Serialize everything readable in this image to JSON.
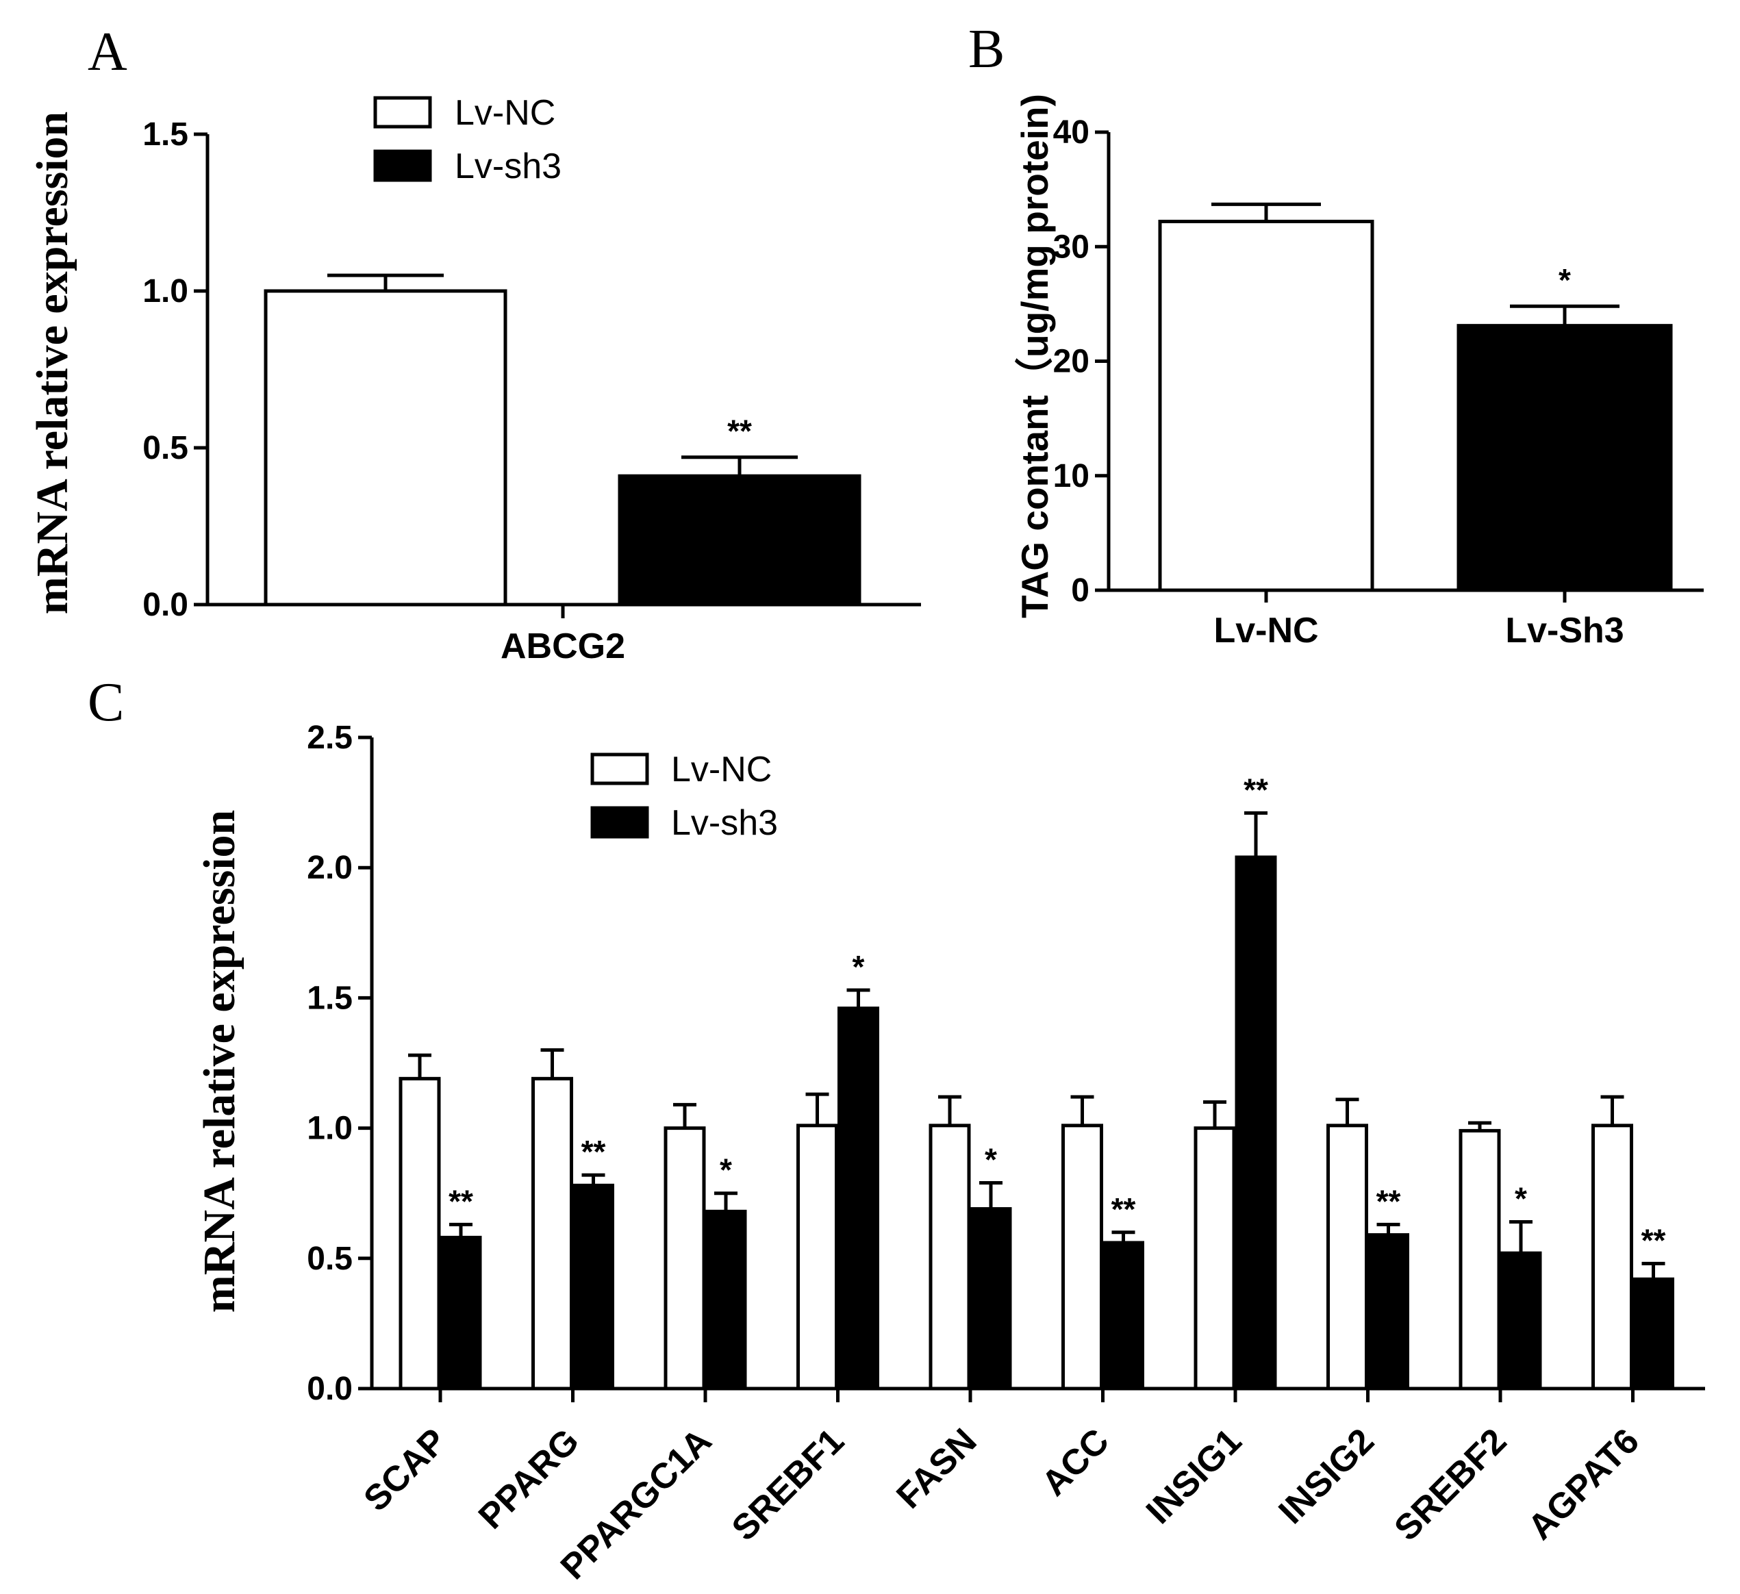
{
  "chart_data": [
    {
      "panel": "A",
      "type": "bar",
      "categories": [
        "ABCG2"
      ],
      "series": [
        {
          "name": "Lv-NC",
          "fill": "#ffffff",
          "values": [
            1.0
          ],
          "errors": [
            0.05
          ],
          "sig": [
            ""
          ]
        },
        {
          "name": "Lv-sh3",
          "fill": "#000000",
          "values": [
            0.41
          ],
          "errors": [
            0.06
          ],
          "sig": [
            "**"
          ]
        }
      ],
      "ylabel": "mRNA relative expression",
      "ylim": [
        0,
        1.5
      ],
      "yticks": [
        "0.0",
        "0.5",
        "1.0",
        "1.5"
      ],
      "ytick_values": [
        0,
        0.5,
        1.0,
        1.5
      ],
      "legend": [
        "Lv-NC",
        "Lv-sh3"
      ]
    },
    {
      "panel": "B",
      "type": "bar",
      "categories": [
        "Lv-NC",
        "Lv-Sh3"
      ],
      "values": [
        32.2,
        23.1
      ],
      "errors": [
        1.5,
        1.7
      ],
      "fills": [
        "#ffffff",
        "#000000"
      ],
      "sig": [
        "",
        "*"
      ],
      "ylabel": "TAG contant（ug/mg protein)",
      "ylim": [
        0,
        40
      ],
      "yticks": [
        "0",
        "10",
        "20",
        "30",
        "40"
      ],
      "ytick_values": [
        0,
        10,
        20,
        30,
        40
      ]
    },
    {
      "panel": "C",
      "type": "bar",
      "categories": [
        "SCAP",
        "PPARG",
        "PPARGC1A",
        "SREBF1",
        "FASN",
        "ACC",
        "INSIG1",
        "INSIG2",
        "SREBF2",
        "AGPAT6"
      ],
      "series": [
        {
          "name": "Lv-NC",
          "fill": "#ffffff",
          "values": [
            1.19,
            1.19,
            1.0,
            1.01,
            1.01,
            1.01,
            1.0,
            1.01,
            0.99,
            1.01
          ],
          "errors": [
            0.09,
            0.11,
            0.09,
            0.12,
            0.11,
            0.11,
            0.1,
            0.1,
            0.03,
            0.11
          ],
          "sig": [
            "",
            "",
            "",
            "",
            "",
            "",
            "",
            "",
            "",
            ""
          ]
        },
        {
          "name": "Lv-sh3",
          "fill": "#000000",
          "values": [
            0.58,
            0.78,
            0.68,
            1.46,
            0.69,
            0.56,
            2.04,
            0.59,
            0.52,
            0.42
          ],
          "errors": [
            0.05,
            0.04,
            0.07,
            0.07,
            0.1,
            0.04,
            0.17,
            0.04,
            0.12,
            0.06
          ],
          "sig": [
            "**",
            "**",
            "*",
            "*",
            "*",
            "**",
            "**",
            "**",
            "*",
            "**"
          ]
        }
      ],
      "ylabel": "mRNA relative expression",
      "ylim": [
        0,
        2.5
      ],
      "yticks": [
        "0.0",
        "0.5",
        "1.0",
        "1.5",
        "2.0",
        "2.5"
      ],
      "ytick_values": [
        0,
        0.5,
        1.0,
        1.5,
        2.0,
        2.5
      ],
      "legend": [
        "Lv-NC",
        "Lv-sh3"
      ]
    }
  ],
  "panel_labels": {
    "a": "A",
    "b": "B",
    "c": "C"
  },
  "colors": {
    "outline": "#000000",
    "nc_fill": "#ffffff",
    "sh3_fill": "#000000"
  }
}
